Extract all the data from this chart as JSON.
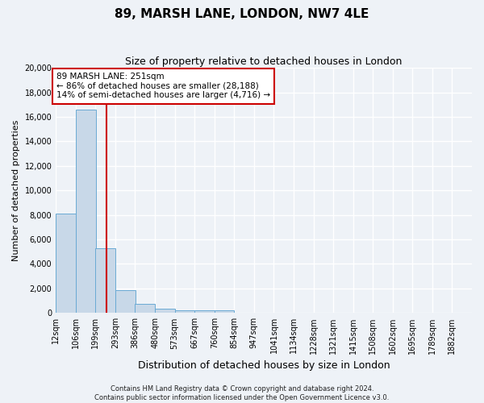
{
  "title": "89, MARSH LANE, LONDON, NW7 4LE",
  "subtitle": "Size of property relative to detached houses in London",
  "xlabel": "Distribution of detached houses by size in London",
  "ylabel": "Number of detached properties",
  "annotation_line1": "89 MARSH LANE: 251sqm",
  "annotation_line2": "← 86% of detached houses are smaller (28,188)",
  "annotation_line3": "14% of semi-detached houses are larger (4,716) →",
  "footnote1": "Contains HM Land Registry data © Crown copyright and database right 2024.",
  "footnote2": "Contains public sector information licensed under the Open Government Licence v3.0.",
  "bar_color": "#c8d8e8",
  "bar_edge_color": "#6aaad4",
  "vline_color": "#cc0000",
  "vline_x": 251,
  "annotation_box_color": "white",
  "annotation_box_edge_color": "#cc0000",
  "categories": [
    "12sqm",
    "106sqm",
    "199sqm",
    "293sqm",
    "386sqm",
    "480sqm",
    "573sqm",
    "667sqm",
    "760sqm",
    "854sqm",
    "947sqm",
    "1041sqm",
    "1134sqm",
    "1228sqm",
    "1321sqm",
    "1415sqm",
    "1508sqm",
    "1602sqm",
    "1695sqm",
    "1789sqm",
    "1882sqm"
  ],
  "bin_edges": [
    12,
    106,
    199,
    293,
    386,
    480,
    573,
    667,
    760,
    854,
    947,
    1041,
    1134,
    1228,
    1321,
    1415,
    1508,
    1602,
    1695,
    1789,
    1882
  ],
  "values": [
    8100,
    16600,
    5300,
    1850,
    750,
    320,
    230,
    195,
    195,
    0,
    0,
    0,
    0,
    0,
    0,
    0,
    0,
    0,
    0,
    0
  ],
  "ylim": [
    0,
    20000
  ],
  "yticks": [
    0,
    2000,
    4000,
    6000,
    8000,
    10000,
    12000,
    14000,
    16000,
    18000,
    20000
  ],
  "bg_color": "#eef2f7",
  "grid_color": "#ffffff",
  "title_fontsize": 11,
  "subtitle_fontsize": 9,
  "footnote_fontsize": 6,
  "ylabel_fontsize": 8,
  "xlabel_fontsize": 9
}
